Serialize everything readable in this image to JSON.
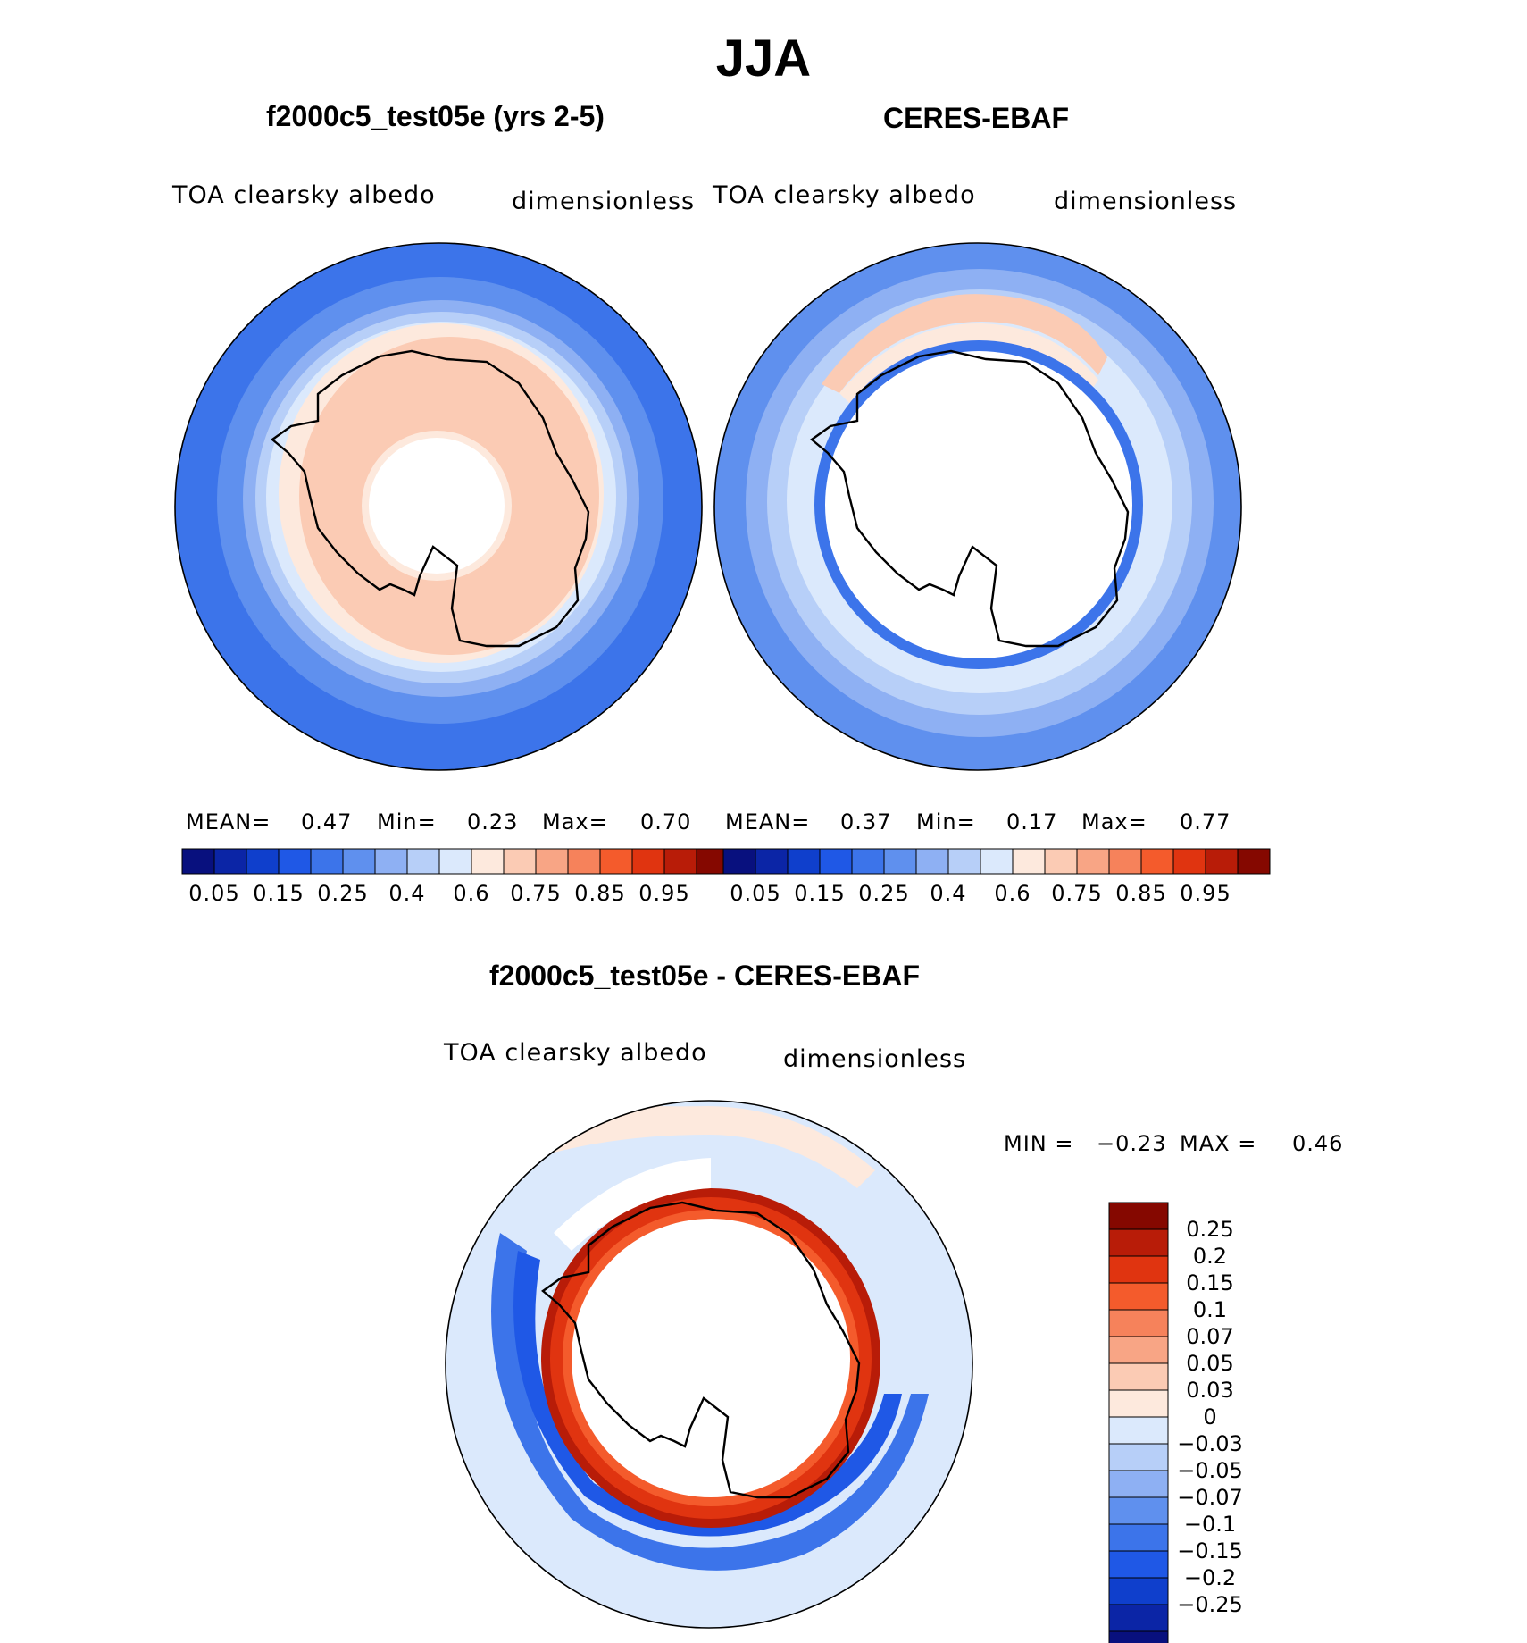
{
  "title": "JJA",
  "panels": [
    {
      "title": "f2000c5_test05e (yrs 2-5)",
      "left_label": "TOA clearsky albedo",
      "right_label": "dimensionless",
      "stats": {
        "mean_label": "MEAN=",
        "mean": "0.47",
        "min_label": "Min=",
        "min": "0.23",
        "max_label": "Max=",
        "max": "0.70"
      }
    },
    {
      "title": "CERES-EBAF",
      "left_label": "TOA clearsky albedo",
      "right_label": "dimensionless",
      "stats": {
        "mean_label": "MEAN=",
        "mean": "0.37",
        "min_label": "Min=",
        "min": "0.17",
        "max_label": "Max=",
        "max": "0.77"
      }
    },
    {
      "title": "f2000c5_test05e - CERES-EBAF",
      "left_label": "TOA clearsky albedo",
      "right_label": "dimensionless",
      "stats": {
        "min_label": "MIN =",
        "min": "−0.23",
        "max_label": "MAX =",
        "max": "0.46"
      }
    }
  ],
  "colorbar_abs": {
    "colors": [
      "#08107e",
      "#0b25a6",
      "#0f3fcc",
      "#1f58e6",
      "#3c74ea",
      "#5f90ee",
      "#8eb0f3",
      "#b7cff8",
      "#dbe9fc",
      "#fde9dd",
      "#fbcbb4",
      "#f8a585",
      "#f6825b",
      "#f45b2c",
      "#e03410",
      "#b81c08",
      "#850800"
    ],
    "tick_labels": [
      "0.05",
      "0.15",
      "0.25",
      "0.4",
      "0.6",
      "0.75",
      "0.85",
      "0.95"
    ]
  },
  "colorbar_diff": {
    "colors_top_to_bottom": [
      "#850800",
      "#b81c08",
      "#e03410",
      "#f45b2c",
      "#f6825b",
      "#f8a585",
      "#fbcbb4",
      "#fde9dd",
      "#dbe9fc",
      "#b7cff8",
      "#8eb0f3",
      "#5f90ee",
      "#3c74ea",
      "#1f58e6",
      "#0f3fcc",
      "#0b25a6",
      "#08107e"
    ],
    "tick_labels": [
      "0.25",
      "0.2",
      "0.15",
      "0.1",
      "0.07",
      "0.05",
      "0.03",
      "0",
      "−0.03",
      "−0.05",
      "−0.07",
      "−0.1",
      "−0.15",
      "−0.2",
      "−0.25"
    ]
  },
  "chart_data": [
    {
      "type": "heatmap",
      "projection": "south polar stereographic",
      "title": "f2000c5_test05e (yrs 2-5)",
      "variable": "TOA clearsky albedo",
      "units": "dimensionless",
      "mean": 0.47,
      "min": 0.23,
      "max": 0.7,
      "levels": [
        0.05,
        0.1,
        0.15,
        0.2,
        0.25,
        0.3,
        0.35,
        0.4,
        0.5,
        0.6,
        0.7,
        0.75,
        0.8,
        0.85,
        0.9,
        0.95
      ],
      "pattern": "albedo ~0.6 over Antarctica and sea ice, decreasing to ~0.2 at outer ocean edge"
    },
    {
      "type": "heatmap",
      "projection": "south polar stereographic",
      "title": "CERES-EBAF",
      "variable": "TOA clearsky albedo",
      "units": "dimensionless",
      "mean": 0.37,
      "min": 0.17,
      "max": 0.77,
      "levels": [
        0.05,
        0.1,
        0.15,
        0.2,
        0.25,
        0.3,
        0.35,
        0.4,
        0.5,
        0.6,
        0.7,
        0.75,
        0.8,
        0.85,
        0.9,
        0.95
      ],
      "pattern": "missing data over Antarctic interior (polar night); ring of lower albedo around continent, ~0.3-0.5 over sea ice"
    },
    {
      "type": "heatmap",
      "projection": "south polar stereographic",
      "title": "f2000c5_test05e - CERES-EBAF",
      "variable": "TOA clearsky albedo",
      "units": "dimensionless",
      "min": -0.23,
      "max": 0.46,
      "levels": [
        -0.25,
        -0.2,
        -0.15,
        -0.1,
        -0.07,
        -0.05,
        -0.03,
        0,
        0.03,
        0.05,
        0.07,
        0.1,
        0.15,
        0.2,
        0.25
      ],
      "pattern": "strong positive ring (>0.25) around Antarctic coast, negative band (~-0.1 to -0.2) in Southern Ocean"
    }
  ]
}
